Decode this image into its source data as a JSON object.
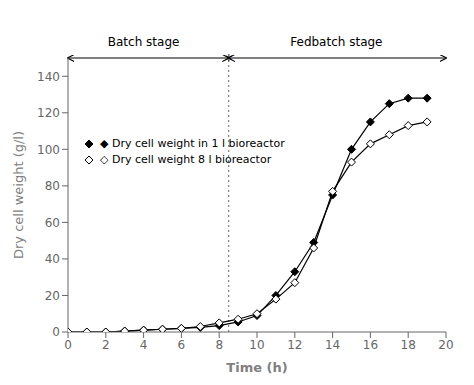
{
  "chart_data": {
    "type": "line",
    "x": [
      0,
      1,
      2,
      3,
      4,
      5,
      6,
      7,
      8,
      9,
      10,
      11,
      12,
      13,
      14,
      15,
      16,
      17,
      18,
      19
    ],
    "series": [
      {
        "name": "◆ Dry cell weight in 1 l bioreactor",
        "color": "#000000",
        "marker": "diamond",
        "values": [
          0,
          0,
          0,
          0.5,
          1,
          1.5,
          2,
          2.5,
          3.5,
          5.5,
          9,
          20,
          33,
          49,
          75,
          100,
          115,
          125,
          128,
          128
        ]
      },
      {
        "name": "◇ Dry cell weight 8 l bioreactor",
        "color": "#000000",
        "marker": "open_diamond",
        "values": [
          0,
          0,
          0,
          0.5,
          1,
          1.5,
          2,
          3,
          5,
          7,
          10,
          18,
          27,
          46,
          77,
          93,
          103,
          108,
          113,
          115
        ]
      }
    ],
    "xlabel": "Time (h)",
    "ylabel": "Dry cell weight (g/l)",
    "xlim": [
      0,
      20
    ],
    "ylim": [
      0,
      150
    ],
    "xticks": [
      0,
      2,
      4,
      6,
      8,
      10,
      12,
      14,
      16,
      18,
      20
    ],
    "yticks": [
      0,
      20,
      40,
      60,
      80,
      100,
      120,
      140
    ],
    "legend": "upper left",
    "grid": false,
    "divider_x": 8.5,
    "annotations": [
      {
        "text": "Batch stage",
        "x": 4.0
      },
      {
        "text": "Fedbatch stage",
        "x": 14.2
      },
      {
        "text": "*",
        "x": 8.5
      }
    ]
  }
}
